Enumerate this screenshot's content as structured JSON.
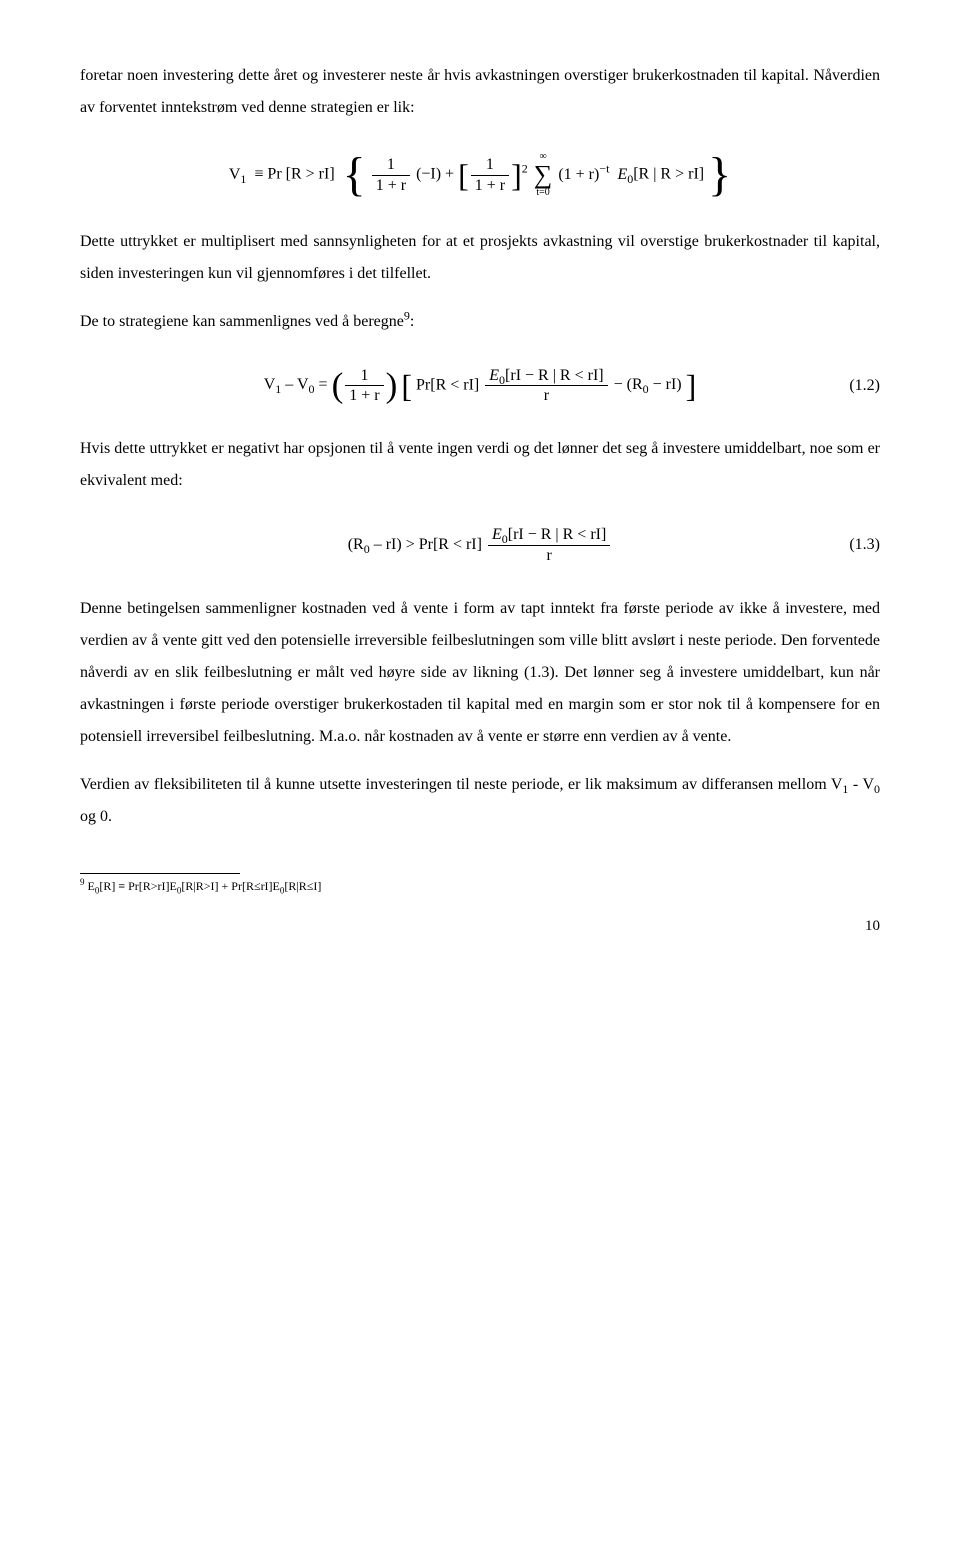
{
  "para1": "foretar noen investering dette året og investerer neste år hvis avkastningen overstiger brukerkostnaden til kapital. Nåverdien av forventet inntekstrøm ved denne strategien er lik:",
  "eq1": {
    "lhs": "V",
    "lhs_sub": "1",
    "equiv": "≡ Pr [R > rI]",
    "frac1_num": "1",
    "frac1_den": "1 + r",
    "times_neg_i": "(−I) +",
    "frac2_num": "1",
    "frac2_den": "1 + r",
    "frac2_power": "2",
    "sum_top": "∞",
    "sum_bot": "t=0",
    "after_sum_a": "(1 + r)",
    "after_sum_sup": "−t",
    "e0": "E",
    "e0_sub": "0",
    "bracket": "[R | R > rI]"
  },
  "para2": "Dette uttrykket er multiplisert med sannsynligheten for at et prosjekts avkastning vil overstige brukerkostnader til kapital, siden investeringen kun vil gjennomføres i det tilfellet.",
  "para3_a": "De to strategiene kan sammenlignes ved å beregne",
  "para3_sup": "9",
  "para3_b": ":",
  "eq2": {
    "lhs": "V",
    "lhs_sub1": "1",
    "minus": " – V",
    "lhs_sub0": "0",
    "eq": " = ",
    "frac_num": "1",
    "frac_den": "1 + r",
    "pr": "Pr[R < rI]",
    "frac2_num_e": "E",
    "frac2_num_esub": "0",
    "frac2_num_rest": "[rI − R | R < rI]",
    "frac2_den": "r",
    "tail_a": " − (R",
    "tail_sub": "0",
    "tail_b": " − rI)",
    "num": "(1.2)"
  },
  "para4": "Hvis dette uttrykket er negativt har opsjonen til å vente ingen verdi og det lønner det seg å investere umiddelbart, noe som er ekvivalent med:",
  "eq3": {
    "lhs_a": "(R",
    "lhs_sub": "0",
    "lhs_b": " – rI)   >   Pr[R < rI]",
    "frac_num_e": "E",
    "frac_num_esub": "0",
    "frac_num_rest": "[rI − R | R < rI]",
    "frac_den": "r",
    "num": "(1.3)"
  },
  "para5": "Denne betingelsen sammenligner kostnaden ved å vente i form av tapt inntekt fra første periode av ikke å investere, med verdien av å vente gitt ved den potensielle irreversible feilbeslutningen som ville blitt avslørt i neste periode.  Den forventede nåverdi av en slik feilbeslutning er målt ved høyre side av likning (1.3). Det lønner seg å investere umiddelbart, kun når avkastningen i første periode overstiger brukerkostaden til kapital med en margin som er stor nok til å kompensere for en potensiell irreversibel feilbeslutning. M.a.o. når kostnaden av å vente er større enn verdien av å vente.",
  "para6_a": "Verdien av fleksibiliteten til å kunne utsette investeringen til neste periode, er lik maksimum av differansen mellom V",
  "para6_sub1": "1",
  "para6_mid": " - V",
  "para6_sub0": "0",
  "para6_b": "  og 0.",
  "footnote_sup": "9",
  "footnote_a": " E",
  "footnote_sub1": "0",
  "footnote_b": "[R] ≡ Pr[R>rI]E",
  "footnote_sub2": "0",
  "footnote_c": "[R|R>I] + Pr[R≤rI]E",
  "footnote_sub3": "0",
  "footnote_d": "[R|R≤I]",
  "pagenum": "10"
}
